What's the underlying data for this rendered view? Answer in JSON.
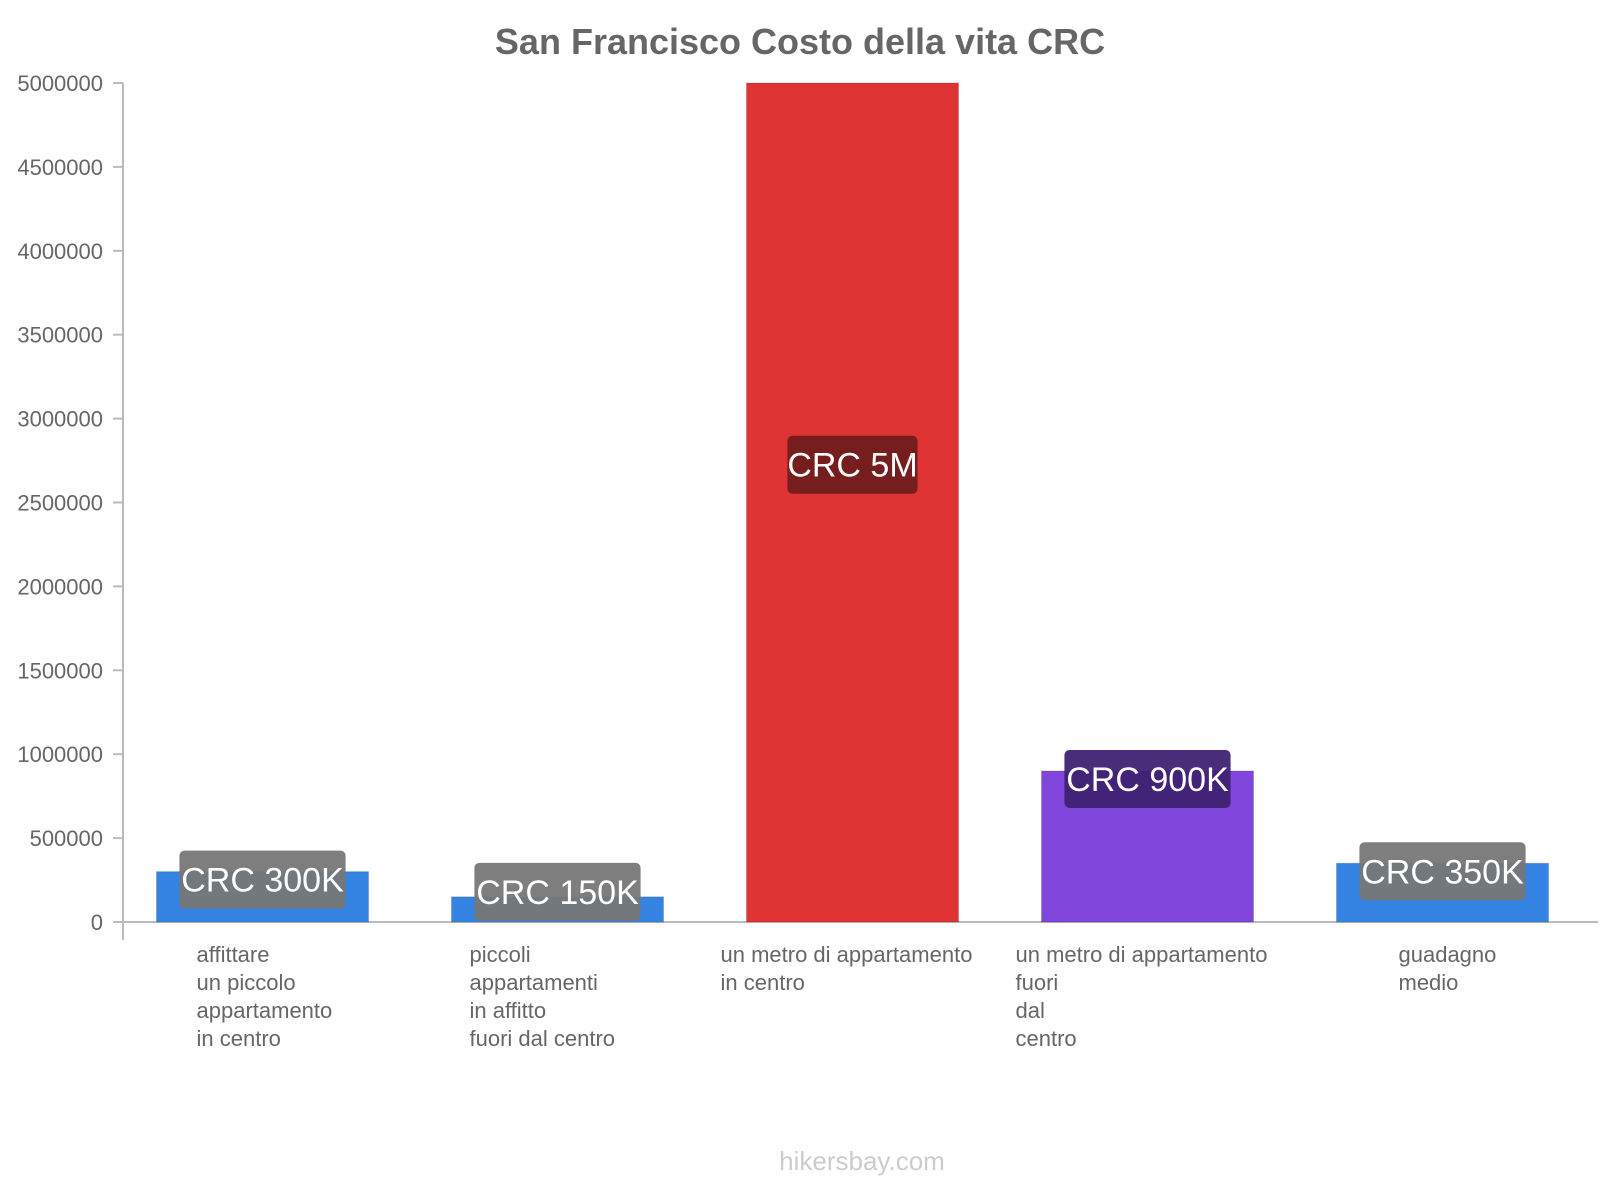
{
  "chart_data": {
    "type": "bar",
    "title": "San Francisco Costo della vita CRC",
    "categories": [
      [
        "affittare",
        "un piccolo",
        "appartamento",
        "in centro"
      ],
      [
        "piccoli",
        "appartamenti",
        "in affitto",
        "fuori dal centro"
      ],
      [
        "un metro di appartamento",
        "in centro"
      ],
      [
        "un metro di appartamento",
        "fuori",
        "dal",
        "centro"
      ],
      [
        "guadagno",
        "medio"
      ]
    ],
    "values": [
      300000,
      150000,
      5000000,
      900000,
      350000
    ],
    "data_labels": [
      "CRC 300K",
      "CRC 150K",
      "CRC 5M",
      "CRC 900K",
      "CRC 350K"
    ],
    "colors": [
      "#3584e4",
      "#3584e4",
      "#e03434",
      "#8046db",
      "#3584e4"
    ],
    "label_bg_colors": [
      "#777777",
      "#777777",
      "#701d1d",
      "#3f2273",
      "#777777"
    ],
    "ylim": [
      0,
      5000000
    ],
    "yticks": [
      0,
      500000,
      1000000,
      1500000,
      2000000,
      2500000,
      3000000,
      3500000,
      4000000,
      4500000,
      5000000
    ],
    "ytick_labels": [
      "0",
      "500000",
      "1000000",
      "1500000",
      "2000000",
      "2500000",
      "3000000",
      "3500000",
      "4000000",
      "4500000",
      "5000000"
    ],
    "xlabel": "",
    "ylabel": "",
    "grid": false,
    "legend": "none"
  },
  "footer": {
    "watermark": "hikersbay.com"
  }
}
